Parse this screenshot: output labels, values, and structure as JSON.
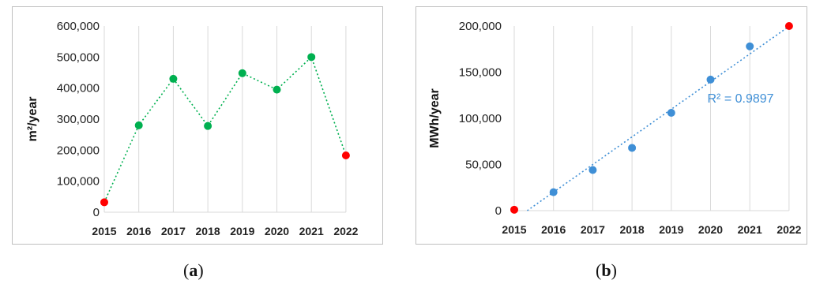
{
  "chart_data": [
    {
      "type": "line",
      "panel": "a",
      "caption": {
        "open": "(",
        "letter": "a",
        "close": ")"
      },
      "ylabel": "m²/year",
      "xlabel": "",
      "ylim": [
        0,
        600000
      ],
      "yticks": [
        "0",
        "100,000",
        "200,000",
        "300,000",
        "400,000",
        "500,000",
        "600,000"
      ],
      "ytick_values": [
        0,
        100000,
        200000,
        300000,
        400000,
        500000,
        600000
      ],
      "categories": [
        "2015",
        "2016",
        "2017",
        "2018",
        "2019",
        "2020",
        "2021",
        "2022"
      ],
      "values": [
        32000,
        280000,
        430000,
        278000,
        448000,
        395000,
        500000,
        183000
      ],
      "point_colors": [
        "#ff0000",
        "#00b050",
        "#00b050",
        "#00b050",
        "#00b050",
        "#00b050",
        "#00b050",
        "#ff0000"
      ],
      "line_color": "#00b050",
      "line_style": "dotted",
      "grid": "vertical"
    },
    {
      "type": "scatter",
      "panel": "b",
      "caption": {
        "open": "(",
        "letter": "b",
        "close": ")"
      },
      "ylabel": "MWh/year",
      "xlabel": "",
      "ylim": [
        0,
        200000
      ],
      "yticks": [
        "0",
        "50,000",
        "100,000",
        "150,000",
        "200,000"
      ],
      "ytick_values": [
        0,
        50000,
        100000,
        150000,
        200000
      ],
      "categories": [
        "2015",
        "2016",
        "2017",
        "2018",
        "2019",
        "2020",
        "2021",
        "2022"
      ],
      "values": [
        1000,
        20000,
        44000,
        68000,
        106000,
        142000,
        178000,
        200000
      ],
      "point_colors": [
        "#ff0000",
        "#3f8fd6",
        "#3f8fd6",
        "#3f8fd6",
        "#3f8fd6",
        "#3f8fd6",
        "#3f8fd6",
        "#ff0000"
      ],
      "trendline": {
        "label": "R² = 0.9897",
        "color": "#3f8fd6",
        "style": "dotted"
      },
      "grid": "vertical"
    }
  ]
}
